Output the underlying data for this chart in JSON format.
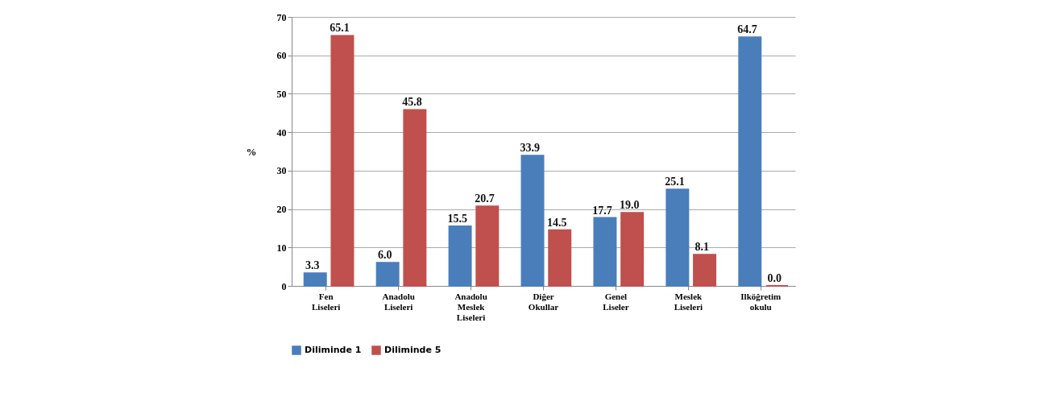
{
  "chart_data": {
    "type": "bar",
    "ylabel": "%",
    "categories": [
      "Fen Liseleri",
      "Anadolu Liseleri",
      "Anadolu Meslek Liseleri",
      "Diğer Okullar",
      "Genel Liseler",
      "Meslek Liseleri",
      "Ilköğretim okulu"
    ],
    "series": [
      {
        "name": "Diliminde 1",
        "color": "#4a7ebb",
        "values": [
          3.3,
          6.0,
          15.5,
          33.9,
          17.7,
          25.1,
          64.7
        ],
        "value_labels": [
          "3.3",
          "6.0",
          "15.5",
          "33.9",
          "17.7",
          "25.1",
          "64.7"
        ]
      },
      {
        "name": "Diliminde 5",
        "color": "#c0504d",
        "values": [
          65.1,
          45.8,
          20.7,
          14.5,
          19.0,
          8.1,
          0.0
        ],
        "value_labels": [
          "65.1",
          "45.8",
          "20.7",
          "14.5",
          "19.0",
          "8.1",
          "0.0"
        ]
      }
    ],
    "ylim": [
      0,
      70
    ],
    "yticks": [
      0,
      10,
      20,
      30,
      40,
      50,
      60,
      70
    ],
    "grid": "y",
    "legend": "bottom"
  }
}
